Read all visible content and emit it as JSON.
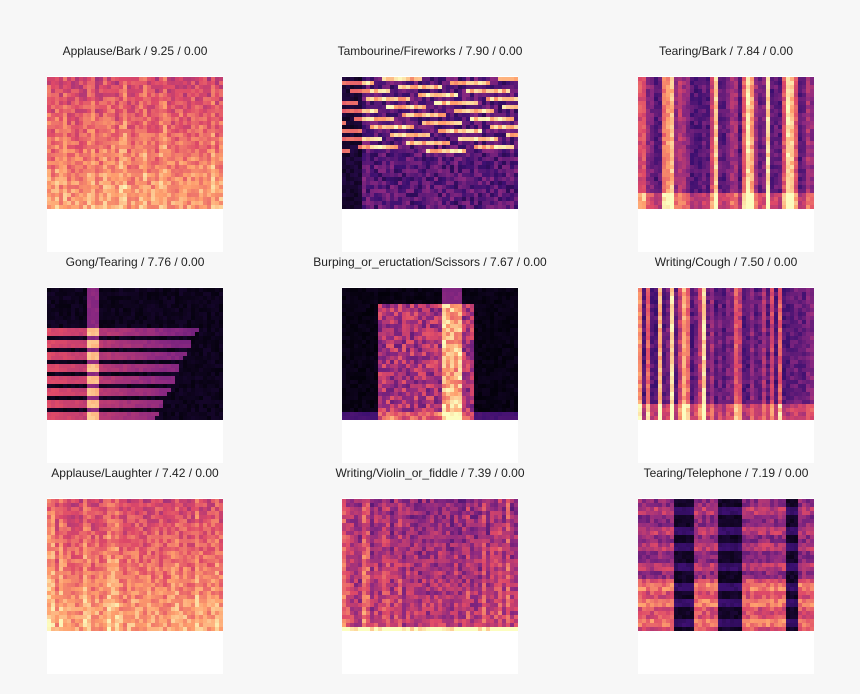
{
  "palette": {
    "background": "#f7f7f7",
    "panel": "#ffffff",
    "magma": [
      "#000004",
      "#3b0f70",
      "#8c2981",
      "#de4968",
      "#fe9f6d",
      "#fcfdbf"
    ]
  },
  "panels": [
    {
      "title": "Applause/Bark / 9.25 / 0.00",
      "style": "dense-uniform"
    },
    {
      "title": "Tambourine/Fireworks / 7.90 / 0.00",
      "style": "harmonic-streaks"
    },
    {
      "title": "Tearing/Bark / 7.84 / 0.00",
      "style": "sparse-vertical"
    },
    {
      "title": "Gong/Tearing / 7.76 / 0.00",
      "style": "decaying-harmonics"
    },
    {
      "title": "Burping_or_eructation/Scissors / 7.67 / 0.00",
      "style": "central-burst"
    },
    {
      "title": "Writing/Cough / 7.50 / 0.00",
      "style": "sparse-vertical"
    },
    {
      "title": "Applause/Laughter / 7.42 / 0.00",
      "style": "dense-uniform"
    },
    {
      "title": "Writing/Violin_or_fiddle / 7.39 / 0.00",
      "style": "mid-noise"
    },
    {
      "title": "Tearing/Telephone / 7.19 / 0.00",
      "style": "banded-gaps"
    }
  ]
}
